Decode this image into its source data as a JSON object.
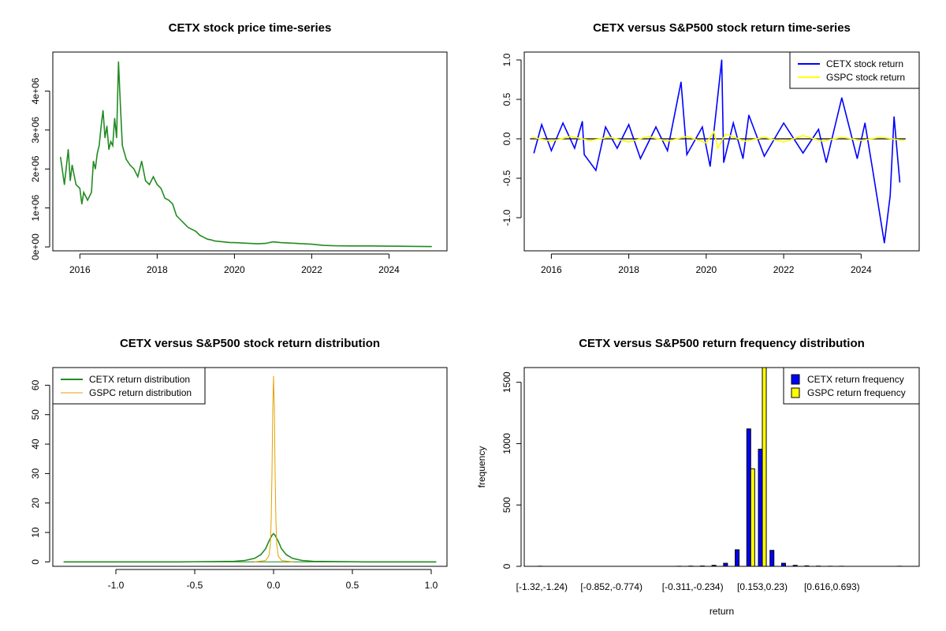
{
  "chart_data": [
    {
      "id": "price",
      "type": "line",
      "title": "CETX stock price time-series",
      "xlabel": "",
      "ylabel": "",
      "xlim": [
        2015.3,
        2025.5
      ],
      "ylim": [
        -100000,
        5000000
      ],
      "x_ticks": [
        2016,
        2018,
        2020,
        2022,
        2024
      ],
      "x_tick_labels": [
        "2016",
        "2018",
        "2020",
        "2022",
        "2024"
      ],
      "y_ticks": [
        0,
        1000000,
        2000000,
        3000000,
        4000000
      ],
      "y_tick_labels": [
        "0e+00",
        "1e+06",
        "2e+06",
        "3e+06",
        "4e+06"
      ],
      "grid": false,
      "series": [
        {
          "color": "#228b22",
          "x": [
            2015.5,
            2015.6,
            2015.7,
            2015.75,
            2015.8,
            2015.9,
            2016.0,
            2016.05,
            2016.1,
            2016.2,
            2016.3,
            2016.35,
            2016.4,
            2016.45,
            2016.5,
            2016.55,
            2016.6,
            2016.65,
            2016.7,
            2016.75,
            2016.8,
            2016.85,
            2016.9,
            2016.95,
            2017.0,
            2017.05,
            2017.1,
            2017.2,
            2017.3,
            2017.4,
            2017.5,
            2017.6,
            2017.7,
            2017.8,
            2017.9,
            2018.0,
            2018.1,
            2018.2,
            2018.3,
            2018.4,
            2018.5,
            2018.6,
            2018.7,
            2018.8,
            2018.9,
            2019.0,
            2019.1,
            2019.2,
            2019.3,
            2019.4,
            2019.5,
            2019.6,
            2019.7,
            2019.8,
            2019.9,
            2020.0,
            2020.2,
            2020.4,
            2020.6,
            2020.8,
            2021.0,
            2021.2,
            2021.4,
            2021.6,
            2021.8,
            2022.0,
            2022.3,
            2022.6,
            2023.0,
            2023.5,
            2024.0,
            2024.5,
            2025.0,
            2025.1
          ],
          "y": [
            2300000,
            1600000,
            2500000,
            1700000,
            2100000,
            1600000,
            1500000,
            1100000,
            1400000,
            1200000,
            1400000,
            2200000,
            2000000,
            2400000,
            2600000,
            3100000,
            3500000,
            2800000,
            3100000,
            2500000,
            2700000,
            2600000,
            3300000,
            2800000,
            4750000,
            3600000,
            2600000,
            2250000,
            2100000,
            2000000,
            1800000,
            2200000,
            1700000,
            1600000,
            1800000,
            1600000,
            1500000,
            1250000,
            1200000,
            1100000,
            800000,
            700000,
            600000,
            500000,
            450000,
            400000,
            300000,
            250000,
            200000,
            180000,
            150000,
            140000,
            130000,
            120000,
            110000,
            110000,
            100000,
            90000,
            80000,
            90000,
            130000,
            110000,
            100000,
            90000,
            80000,
            70000,
            40000,
            30000,
            25000,
            25000,
            20000,
            15000,
            10000,
            10000
          ]
        }
      ]
    },
    {
      "id": "returns",
      "type": "line",
      "title": "CETX versus S&P500 stock return time-series",
      "xlabel": "",
      "ylabel": "",
      "xlim": [
        2015.3,
        2025.5
      ],
      "ylim": [
        -1.42,
        1.1
      ],
      "x_ticks": [
        2016,
        2018,
        2020,
        2022,
        2024
      ],
      "x_tick_labels": [
        "2016",
        "2018",
        "2020",
        "2022",
        "2024"
      ],
      "y_ticks": [
        -1.0,
        -0.5,
        0.0,
        0.5,
        1.0
      ],
      "y_tick_labels": [
        "-1.0",
        "-0.5",
        "0.0",
        "0.5",
        "1.0"
      ],
      "grid": false,
      "legend_position": "top-right",
      "legend": [
        "CETX stock return",
        "GSPC stock return"
      ],
      "series": [
        {
          "name": "CETX stock return",
          "color": "#0000ff",
          "x": [
            2015.55,
            2015.75,
            2016.0,
            2016.3,
            2016.6,
            2016.8,
            2016.85,
            2017.15,
            2017.4,
            2017.7,
            2018.0,
            2018.3,
            2018.7,
            2019.0,
            2019.35,
            2019.5,
            2019.9,
            2020.1,
            2020.4,
            2020.45,
            2020.7,
            2020.95,
            2021.1,
            2021.5,
            2022.0,
            2022.5,
            2022.9,
            2023.1,
            2023.5,
            2023.9,
            2024.1,
            2024.3,
            2024.6,
            2024.75,
            2024.85,
            2025.0
          ],
          "y": [
            -0.18,
            0.18,
            -0.15,
            0.2,
            -0.12,
            0.22,
            -0.2,
            -0.4,
            0.15,
            -0.12,
            0.18,
            -0.25,
            0.15,
            -0.15,
            0.72,
            -0.2,
            0.15,
            -0.35,
            1.0,
            -0.3,
            0.2,
            -0.25,
            0.3,
            -0.22,
            0.2,
            -0.18,
            0.12,
            -0.3,
            0.52,
            -0.25,
            0.2,
            -0.4,
            -1.32,
            -0.72,
            0.28,
            -0.55
          ]
        },
        {
          "name": "GSPC stock return",
          "color": "#ffff00",
          "x": [
            2015.5,
            2016.0,
            2016.5,
            2017.0,
            2017.5,
            2018.0,
            2018.5,
            2019.0,
            2019.5,
            2020.0,
            2020.2,
            2020.3,
            2020.5,
            2021.0,
            2021.5,
            2022.0,
            2022.5,
            2023.0,
            2023.5,
            2024.0,
            2024.5,
            2025.1
          ],
          "y": [
            0.02,
            -0.03,
            0.03,
            -0.02,
            0.02,
            -0.04,
            0.03,
            -0.03,
            0.03,
            -0.05,
            0.09,
            -0.12,
            0.06,
            -0.03,
            0.02,
            -0.04,
            0.04,
            -0.03,
            0.02,
            -0.02,
            0.02,
            -0.02
          ]
        }
      ]
    },
    {
      "id": "density",
      "type": "line",
      "title": "CETX versus S&P500 stock return distribution",
      "xlabel": "",
      "ylabel": "",
      "xlim": [
        -1.4,
        1.1
      ],
      "ylim": [
        -1.5,
        66
      ],
      "x_ticks": [
        -1.0,
        -0.5,
        0.0,
        0.5,
        1.0
      ],
      "x_tick_labels": [
        "-1.0",
        "-0.5",
        "0.0",
        "0.5",
        "1.0"
      ],
      "y_ticks": [
        0,
        10,
        20,
        30,
        40,
        50,
        60
      ],
      "y_tick_labels": [
        "0",
        "10",
        "20",
        "30",
        "40",
        "50",
        "60"
      ],
      "grid": false,
      "legend_position": "top-left",
      "legend": [
        "CETX return distribution",
        "GSPC return distribution"
      ],
      "series": [
        {
          "name": "CETX return distribution",
          "color": "#228b22",
          "x": [
            -1.33,
            -0.6,
            -0.25,
            -0.18,
            -0.12,
            -0.08,
            -0.05,
            -0.03,
            -0.01,
            0.0,
            0.01,
            0.03,
            0.05,
            0.08,
            0.12,
            0.18,
            0.25,
            0.6,
            1.03
          ],
          "y": [
            0,
            0,
            0.2,
            0.5,
            1.2,
            2.5,
            4.5,
            7.0,
            9.0,
            9.6,
            9.0,
            7.0,
            4.5,
            2.5,
            1.2,
            0.5,
            0.2,
            0,
            0
          ]
        },
        {
          "name": "GSPC return distribution",
          "color": "#e6a000",
          "x": [
            -0.12,
            -0.05,
            -0.03,
            -0.02,
            -0.015,
            -0.01,
            -0.005,
            0.0,
            0.005,
            0.01,
            0.015,
            0.02,
            0.03,
            0.05,
            0.12
          ],
          "y": [
            0,
            0.5,
            2,
            6,
            14,
            30,
            52,
            63,
            52,
            30,
            14,
            6,
            2,
            0.5,
            0
          ]
        }
      ]
    },
    {
      "id": "frequency",
      "type": "bar",
      "title": "CETX versus S&P500 return frequency distribution",
      "xlabel": "return",
      "ylabel": "frequency",
      "ylim": [
        0,
        1620
      ],
      "y_ticks": [
        0,
        500,
        1000,
        1500
      ],
      "y_tick_labels": [
        "0",
        "500",
        "1000",
        "1500"
      ],
      "grid": false,
      "legend_position": "top-right",
      "legend": [
        "CETX return frequency",
        "GSPC return frequency"
      ],
      "categories": [
        "[-1.32,-1.24)",
        "",
        "",
        "",
        "",
        "",
        "[-0.852,-0.774)",
        "",
        "",
        "",
        "",
        "",
        "",
        "[-0.311,-0.234)",
        "",
        "",
        "",
        "",
        "",
        "[0.153,0.23)",
        "",
        "",
        "",
        "",
        "",
        "[0.616,0.693)",
        "",
        "",
        "",
        "",
        "",
        ""
      ],
      "series": [
        {
          "name": "CETX return frequency",
          "color": "#0000ff",
          "values": [
            1,
            0,
            0,
            0,
            0,
            0,
            0,
            0,
            0,
            0,
            0,
            0,
            1,
            2,
            3,
            8,
            25,
            135,
            1120,
            955,
            130,
            25,
            8,
            4,
            2,
            1,
            1,
            0,
            0,
            0,
            0,
            1
          ]
        },
        {
          "name": "GSPC return frequency",
          "color": "#ffff00",
          "values": [
            0,
            0,
            0,
            0,
            0,
            0,
            0,
            0,
            0,
            0,
            0,
            0,
            0,
            0,
            0,
            0,
            0,
            0,
            795,
            1620,
            0,
            0,
            0,
            0,
            0,
            0,
            0,
            0,
            0,
            0,
            0,
            0
          ]
        }
      ]
    }
  ]
}
